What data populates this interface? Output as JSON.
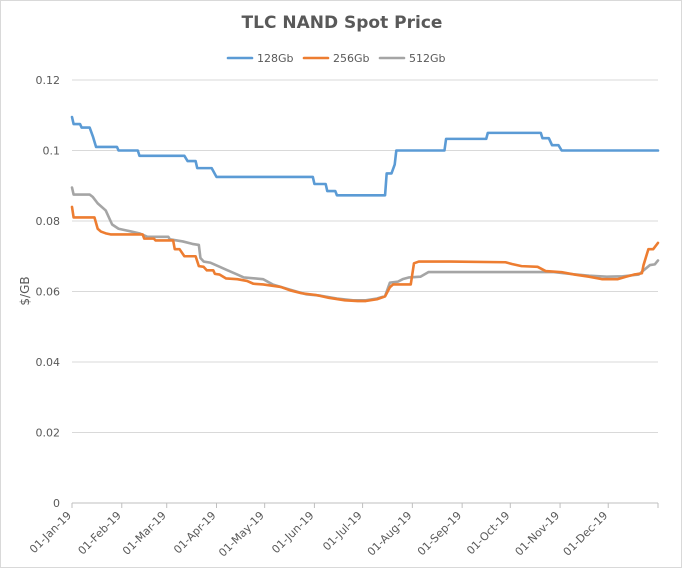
{
  "chart_data": {
    "type": "line",
    "title": "TLC NAND Spot Price",
    "xlabel": "",
    "ylabel": "$/GB",
    "ylim": [
      0,
      0.12
    ],
    "yticks": [
      "0",
      "0.02",
      "0.04",
      "0.06",
      "0.08",
      "0.1",
      "0.12"
    ],
    "xlim_days": [
      0,
      365
    ],
    "x_ticks": [
      {
        "label": "01-Jan-19",
        "day": 0
      },
      {
        "label": "01-Feb-19",
        "day": 31
      },
      {
        "label": "01-Mar-19",
        "day": 59
      },
      {
        "label": "01-Apr-19",
        "day": 90
      },
      {
        "label": "01-May-19",
        "day": 120
      },
      {
        "label": "01-Jun-19",
        "day": 151
      },
      {
        "label": "01-Jul-19",
        "day": 181
      },
      {
        "label": "01-Aug-19",
        "day": 212
      },
      {
        "label": "01-Sep-19",
        "day": 243
      },
      {
        "label": "01-Oct-19",
        "day": 273
      },
      {
        "label": "01-Nov-19",
        "day": 304
      },
      {
        "label": "01-Dec-19",
        "day": 334
      }
    ],
    "legend_position": "top",
    "grid": true,
    "series": [
      {
        "name": "128Gb",
        "color": "#5B9BD5",
        "points": [
          [
            0,
            0.1095
          ],
          [
            1,
            0.1075
          ],
          [
            5,
            0.1075
          ],
          [
            6,
            0.1065
          ],
          [
            11,
            0.1065
          ],
          [
            13,
            0.104
          ],
          [
            15,
            0.101
          ],
          [
            28,
            0.101
          ],
          [
            29,
            0.1
          ],
          [
            41,
            0.1
          ],
          [
            42,
            0.0985
          ],
          [
            70,
            0.0985
          ],
          [
            72,
            0.097
          ],
          [
            77,
            0.097
          ],
          [
            78,
            0.095
          ],
          [
            87,
            0.095
          ],
          [
            90,
            0.0925
          ],
          [
            150,
            0.0925
          ],
          [
            151,
            0.0905
          ],
          [
            158,
            0.0905
          ],
          [
            159,
            0.0885
          ],
          [
            164,
            0.0885
          ],
          [
            165,
            0.0873
          ],
          [
            195,
            0.0873
          ],
          [
            196,
            0.0935
          ],
          [
            199,
            0.0935
          ],
          [
            201,
            0.096
          ],
          [
            202,
            0.1
          ],
          [
            232,
            0.1
          ],
          [
            233,
            0.1033
          ],
          [
            258,
            0.1033
          ],
          [
            259,
            0.105
          ],
          [
            292,
            0.105
          ],
          [
            293,
            0.1035
          ],
          [
            297,
            0.1035
          ],
          [
            299,
            0.1015
          ],
          [
            303,
            0.1015
          ],
          [
            305,
            0.1
          ],
          [
            365,
            0.1
          ]
        ]
      },
      {
        "name": "256Gb",
        "color": "#ED7D31",
        "points": [
          [
            0,
            0.084
          ],
          [
            1,
            0.081
          ],
          [
            14,
            0.081
          ],
          [
            16,
            0.0778
          ],
          [
            18,
            0.077
          ],
          [
            21,
            0.0765
          ],
          [
            24,
            0.0762
          ],
          [
            44,
            0.0762
          ],
          [
            45,
            0.075
          ],
          [
            51,
            0.075
          ],
          [
            52,
            0.0745
          ],
          [
            63,
            0.0745
          ],
          [
            64,
            0.072
          ],
          [
            67,
            0.072
          ],
          [
            70,
            0.07
          ],
          [
            77,
            0.07
          ],
          [
            79,
            0.0672
          ],
          [
            82,
            0.067
          ],
          [
            84,
            0.066
          ],
          [
            88,
            0.066
          ],
          [
            89,
            0.065
          ],
          [
            92,
            0.0648
          ],
          [
            96,
            0.0637
          ],
          [
            103,
            0.0635
          ],
          [
            109,
            0.063
          ],
          [
            113,
            0.0622
          ],
          [
            119,
            0.062
          ],
          [
            130,
            0.0613
          ],
          [
            136,
            0.0603
          ],
          [
            143,
            0.0595
          ],
          [
            152,
            0.059
          ],
          [
            160,
            0.0582
          ],
          [
            170,
            0.0575
          ],
          [
            178,
            0.0573
          ],
          [
            183,
            0.0573
          ],
          [
            190,
            0.0578
          ],
          [
            195,
            0.0586
          ],
          [
            198,
            0.0612
          ],
          [
            200,
            0.062
          ],
          [
            211,
            0.062
          ],
          [
            213,
            0.068
          ],
          [
            216,
            0.0685
          ],
          [
            236,
            0.0685
          ],
          [
            270,
            0.0683
          ],
          [
            274,
            0.0678
          ],
          [
            280,
            0.0672
          ],
          [
            290,
            0.067
          ],
          [
            295,
            0.0658
          ],
          [
            305,
            0.0655
          ],
          [
            313,
            0.0648
          ],
          [
            322,
            0.0642
          ],
          [
            330,
            0.0635
          ],
          [
            340,
            0.0635
          ],
          [
            345,
            0.0642
          ],
          [
            350,
            0.0648
          ],
          [
            355,
            0.0652
          ],
          [
            356,
            0.0675
          ],
          [
            359,
            0.072
          ],
          [
            362,
            0.072
          ],
          [
            365,
            0.0738
          ]
        ]
      },
      {
        "name": "512Gb",
        "color": "#A5A5A5",
        "points": [
          [
            0,
            0.0895
          ],
          [
            1,
            0.0875
          ],
          [
            11,
            0.0875
          ],
          [
            13,
            0.0868
          ],
          [
            16,
            0.085
          ],
          [
            21,
            0.083
          ],
          [
            25,
            0.079
          ],
          [
            29,
            0.0778
          ],
          [
            37,
            0.077
          ],
          [
            42,
            0.0765
          ],
          [
            47,
            0.0755
          ],
          [
            60,
            0.0755
          ],
          [
            61,
            0.0748
          ],
          [
            69,
            0.0742
          ],
          [
            75,
            0.0735
          ],
          [
            79,
            0.0732
          ],
          [
            80,
            0.0695
          ],
          [
            82,
            0.0685
          ],
          [
            86,
            0.0682
          ],
          [
            92,
            0.067
          ],
          [
            96,
            0.0662
          ],
          [
            103,
            0.0648
          ],
          [
            107,
            0.064
          ],
          [
            119,
            0.0635
          ],
          [
            125,
            0.062
          ],
          [
            136,
            0.0605
          ],
          [
            146,
            0.0592
          ],
          [
            155,
            0.0588
          ],
          [
            165,
            0.058
          ],
          [
            175,
            0.0575
          ],
          [
            183,
            0.0575
          ],
          [
            190,
            0.058
          ],
          [
            195,
            0.0587
          ],
          [
            198,
            0.0625
          ],
          [
            203,
            0.0628
          ],
          [
            206,
            0.0635
          ],
          [
            210,
            0.064
          ],
          [
            217,
            0.0642
          ],
          [
            222,
            0.0655
          ],
          [
            300,
            0.0655
          ],
          [
            310,
            0.065
          ],
          [
            322,
            0.0645
          ],
          [
            333,
            0.0642
          ],
          [
            343,
            0.0643
          ],
          [
            353,
            0.0648
          ],
          [
            356,
            0.066
          ],
          [
            360,
            0.0675
          ],
          [
            363,
            0.0677
          ],
          [
            365,
            0.0688
          ]
        ]
      }
    ]
  }
}
